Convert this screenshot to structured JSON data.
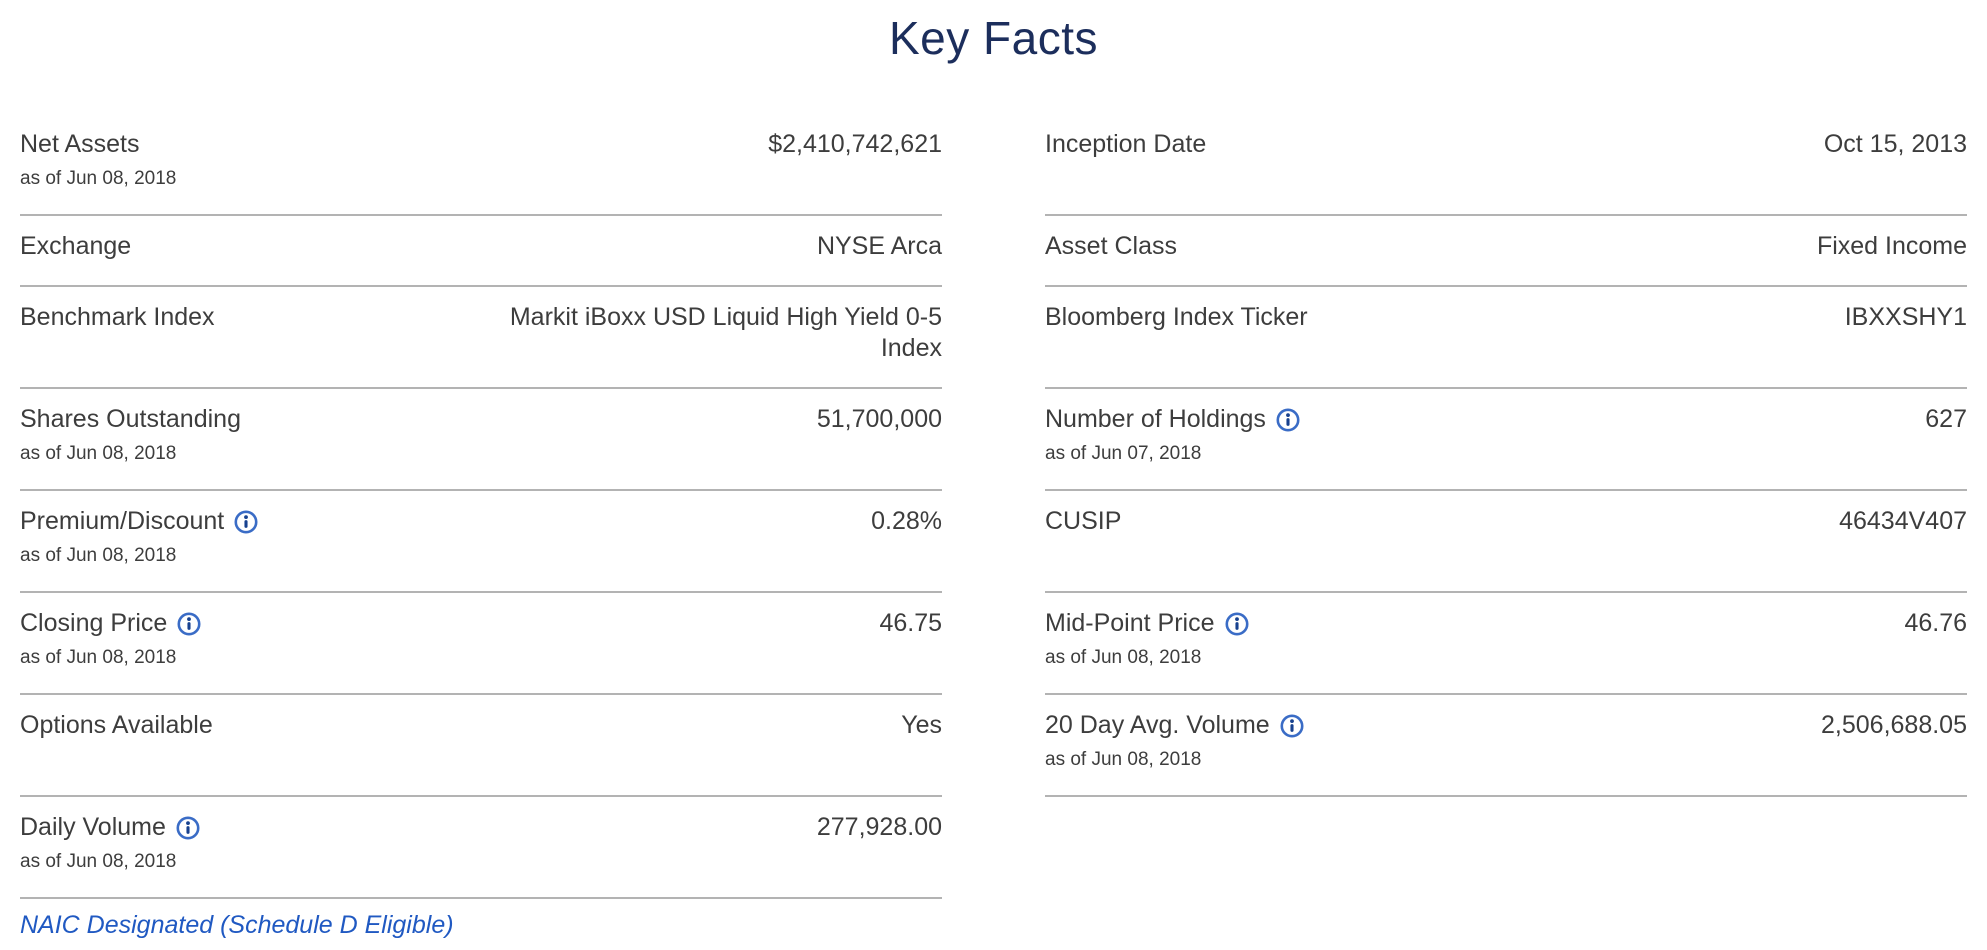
{
  "page": {
    "title": "Key Facts"
  },
  "colors": {
    "title": "#1c2e5c",
    "text": "#3d3d3d",
    "divider": "#b3b3b3",
    "link_blue": "#2059c2",
    "info_icon_blue": "#3a6cc6"
  },
  "columns": {
    "left": {
      "rows": [
        {
          "label": "Net Assets",
          "value": "$2,410,742,621",
          "as_of": "as of Jun 08, 2018",
          "info": false
        },
        {
          "label": "Exchange",
          "value": "NYSE Arca",
          "as_of": "",
          "info": false
        },
        {
          "label": "Benchmark Index",
          "value": "Markit iBoxx USD Liquid High Yield 0-5 Index",
          "as_of": "",
          "info": false
        },
        {
          "label": "Shares Outstanding",
          "value": "51,700,000",
          "as_of": "as of Jun 08, 2018",
          "info": false
        },
        {
          "label": "Premium/Discount",
          "value": "0.28%",
          "as_of": "as of Jun 08, 2018",
          "info": true
        },
        {
          "label": "Closing Price",
          "value": "46.75",
          "as_of": "as of Jun 08, 2018",
          "info": true
        },
        {
          "label": "Options Available",
          "value": "Yes",
          "as_of": "",
          "info": false
        },
        {
          "label": "Daily Volume",
          "value": "277,928.00",
          "as_of": "as of Jun 08, 2018",
          "info": true
        }
      ],
      "footer_link": "NAIC Designated (Schedule D Eligible)"
    },
    "right": {
      "rows": [
        {
          "label": "Inception Date",
          "value": "Oct 15, 2013",
          "as_of": "",
          "info": false
        },
        {
          "label": "Asset Class",
          "value": "Fixed Income",
          "as_of": "",
          "info": false
        },
        {
          "label": "Bloomberg Index Ticker",
          "value": "IBXXSHY1",
          "as_of": "",
          "info": false
        },
        {
          "label": "Number of Holdings",
          "value": "627",
          "as_of": "as of Jun 07, 2018",
          "info": true
        },
        {
          "label": "CUSIP",
          "value": "46434V407",
          "as_of": "",
          "info": false
        },
        {
          "label": "Mid-Point Price",
          "value": "46.76",
          "as_of": "as of Jun 08, 2018",
          "info": true
        },
        {
          "label": "20 Day Avg. Volume",
          "value": "2,506,688.05",
          "as_of": "as of Jun 08, 2018",
          "info": true
        }
      ]
    }
  }
}
